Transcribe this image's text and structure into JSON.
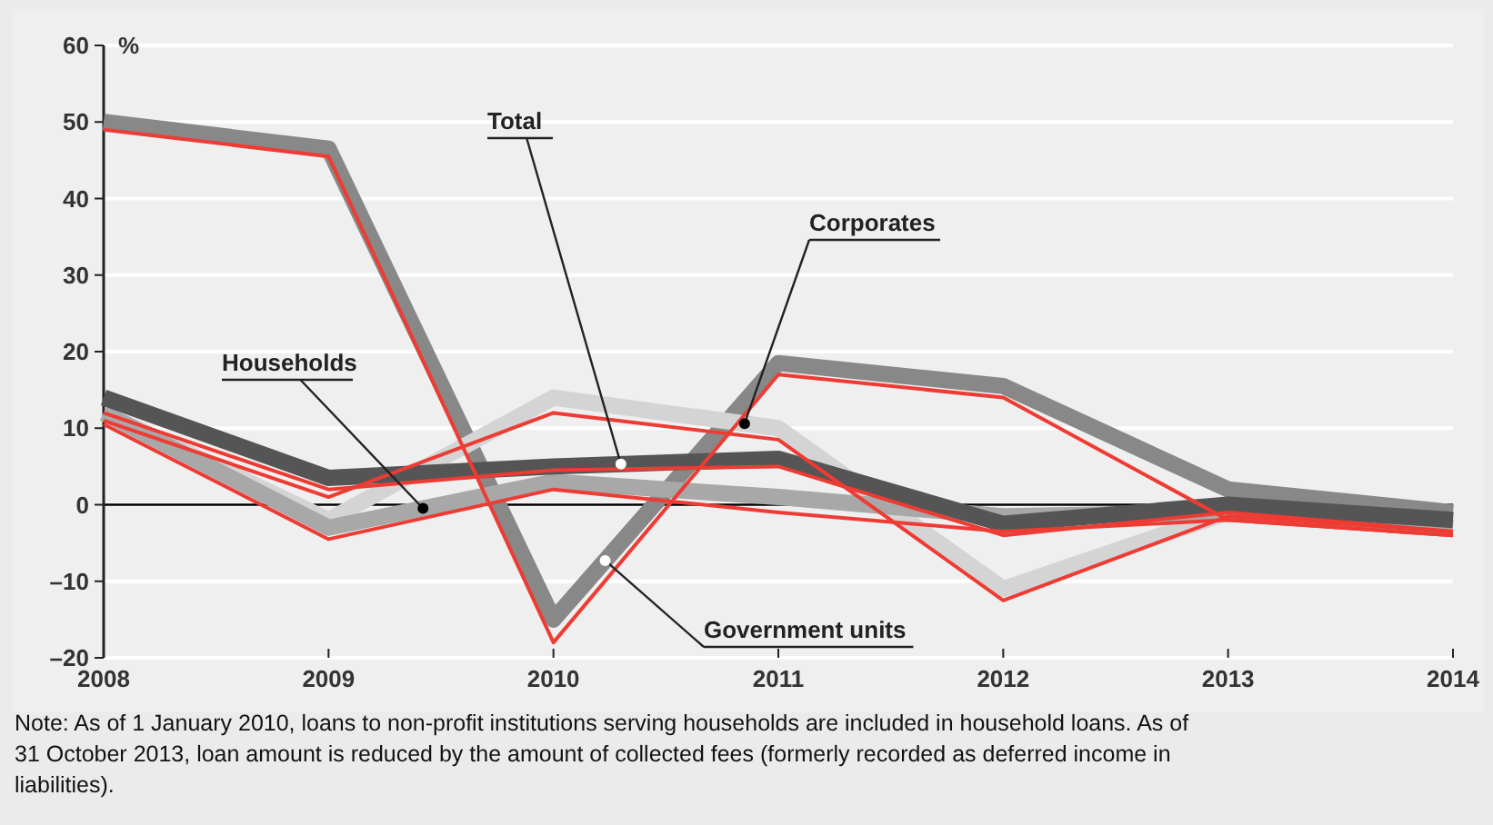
{
  "chart_data": {
    "type": "line",
    "ylabel": "%",
    "x": [
      2008,
      2009,
      2010,
      2011,
      2012,
      2013,
      2014
    ],
    "xlim": [
      2008,
      2014
    ],
    "xticks": [
      2008,
      2009,
      2010,
      2011,
      2012,
      2013,
      2014
    ],
    "ylim": [
      -20,
      60
    ],
    "yticks": [
      {
        "value": -20,
        "label": "–20"
      },
      {
        "value": -10,
        "label": "–10"
      },
      0,
      10,
      20,
      30,
      40,
      50,
      60
    ],
    "grid": "y",
    "marker": "none",
    "line_style": "solid",
    "ref_lines": [
      {
        "axis": "y",
        "value": 0,
        "color": "#000000"
      }
    ],
    "series": [
      {
        "name": "Government units",
        "color": "#888888",
        "values": [
          50,
          46.5,
          -15,
          18.5,
          15.5,
          2,
          -1
        ]
      },
      {
        "name": "Corporates",
        "color": "#d4d4d4",
        "values": [
          12,
          -2,
          14,
          10,
          -11,
          -1,
          -2
        ]
      },
      {
        "name": "Households",
        "color": "#a8a8a8",
        "values": [
          12,
          -3,
          3,
          1,
          -1.5,
          -1,
          -3
        ]
      },
      {
        "name": "Total",
        "color": "#555555",
        "values": [
          14,
          3.5,
          5,
          6,
          -2.5,
          0,
          -2
        ]
      },
      {
        "color": "#ee3b33",
        "values": [
          49,
          45.5,
          -18,
          17,
          14,
          -2,
          -4
        ]
      },
      {
        "color": "#ee3b33",
        "values": [
          11,
          1,
          12,
          8.5,
          -12.5,
          -1.5,
          -3.5
        ]
      },
      {
        "color": "#ee3b33",
        "values": [
          10.5,
          -4.5,
          2,
          -1,
          -3.5,
          -2,
          -4
        ]
      },
      {
        "color": "#ee3b33",
        "values": [
          12,
          2,
          4.5,
          5,
          -4,
          -1,
          -3.5
        ]
      }
    ],
    "annotations": [
      "Note: As of 1 January 2010, loans to non-profit institutions serving households are included in household loans. As of 31 October 2013, loan amount is reduced by the amount of collected fees (formerly recorded as deferred income in liabilities)."
    ]
  }
}
